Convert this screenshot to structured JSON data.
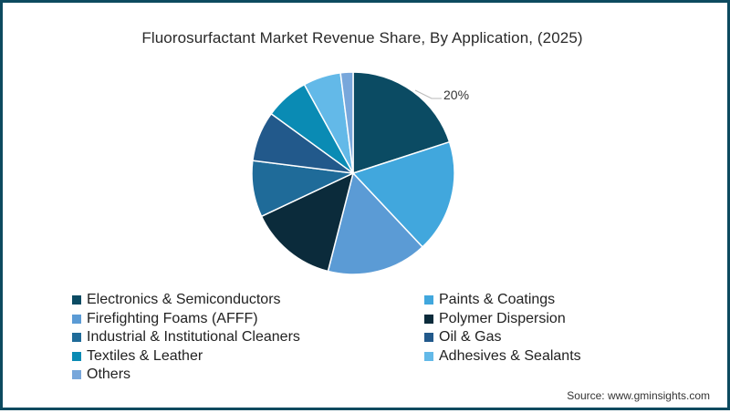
{
  "chart_data": {
    "type": "pie",
    "title": "Fluorosurfactant Market Revenue Share, By Application, (2025)",
    "categories": [
      "Electronics & Semiconductors",
      "Paints & Coatings",
      "Firefighting Foams (AFFF)",
      "Polymer Dispersion",
      "Industrial & Institutional Cleaners",
      "Oil & Gas",
      "Textiles & Leather",
      "Adhesives & Sealants",
      "Others"
    ],
    "values": [
      20,
      18,
      16,
      14,
      9,
      8,
      7,
      6,
      2
    ],
    "unit": "%",
    "colors": [
      "#0b4b63",
      "#41a7dd",
      "#5b9bd5",
      "#0b2b3b",
      "#1f6b99",
      "#22598b",
      "#0a8bb4",
      "#63b9e8",
      "#78a7db"
    ],
    "annotations": [
      {
        "category": "Electronics & Semiconductors",
        "text": "20%"
      }
    ],
    "legend_position": "bottom",
    "start_angle": 0,
    "direction": "clockwise"
  },
  "title": "Fluorosurfactant Market Revenue Share, By Application, (2025)",
  "data_label": "20%",
  "legend": {
    "items": [
      {
        "label": "Electronics & Semiconductors",
        "color": "#0b4b63"
      },
      {
        "label": "Paints & Coatings",
        "color": "#41a7dd"
      },
      {
        "label": "Firefighting Foams (AFFF)",
        "color": "#5b9bd5"
      },
      {
        "label": "Polymer Dispersion",
        "color": "#0b2b3b"
      },
      {
        "label": "Industrial & Institutional Cleaners",
        "color": "#1f6b99"
      },
      {
        "label": "Oil & Gas",
        "color": "#22598b"
      },
      {
        "label": "Textiles & Leather",
        "color": "#0a8bb4"
      },
      {
        "label": "Adhesives & Sealants",
        "color": "#63b9e8"
      },
      {
        "label": "Others",
        "color": "#78a7db"
      }
    ]
  },
  "source": "Source: www.gminsights.com",
  "frame_color": "#0d4a5f"
}
